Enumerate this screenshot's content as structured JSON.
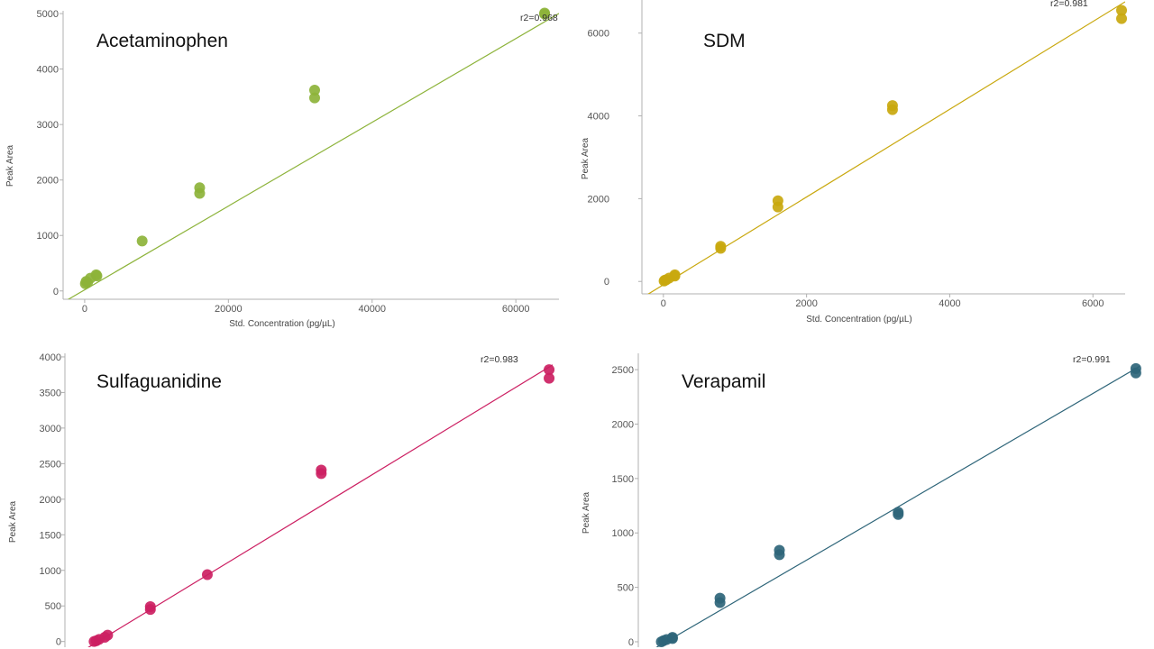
{
  "chart_data": [
    {
      "type": "scatter",
      "title": "Acetaminophen",
      "xlabel": "Std. Concentration (pg/µL)",
      "ylabel": "Peak Area",
      "xlim": [
        -3000,
        66000
      ],
      "ylim": [
        -150,
        5050
      ],
      "xticks": [
        0,
        20000,
        40000,
        60000
      ],
      "yticks": [
        0,
        1000,
        2000,
        3000,
        4000,
        5000
      ],
      "r2_label": "r2=0.968",
      "color": "#8db33a",
      "fit": {
        "slope": 0.0755,
        "intercept": 20
      },
      "points": [
        {
          "x": 100,
          "y": 130
        },
        {
          "x": 200,
          "y": 170
        },
        {
          "x": 400,
          "y": 150
        },
        {
          "x": 800,
          "y": 230
        },
        {
          "x": 1600,
          "y": 290
        },
        {
          "x": 1700,
          "y": 270
        },
        {
          "x": 8000,
          "y": 900
        },
        {
          "x": 16000,
          "y": 1760
        },
        {
          "x": 16000,
          "y": 1860
        },
        {
          "x": 32000,
          "y": 3480
        },
        {
          "x": 32000,
          "y": 3620
        },
        {
          "x": 64000,
          "y": 4990
        },
        {
          "x": 64000,
          "y": 5010
        }
      ]
    },
    {
      "type": "scatter",
      "title": "SDM",
      "xlabel": "Std. Concentration (pg/µL)",
      "ylabel": "Peak Area",
      "xlim": [
        -300,
        6450
      ],
      "ylim": [
        -300,
        6800
      ],
      "xticks": [
        0,
        2000,
        4000,
        6000
      ],
      "yticks": [
        0,
        2000,
        4000,
        6000
      ],
      "r2_label": "r2=0.981",
      "color": "#c9a80e",
      "fit": {
        "slope": 1.06,
        "intercept": -80
      },
      "points": [
        {
          "x": 10,
          "y": 10
        },
        {
          "x": 20,
          "y": 30
        },
        {
          "x": 40,
          "y": 40
        },
        {
          "x": 80,
          "y": 80
        },
        {
          "x": 160,
          "y": 160
        },
        {
          "x": 160,
          "y": 130
        },
        {
          "x": 800,
          "y": 800
        },
        {
          "x": 800,
          "y": 850
        },
        {
          "x": 1600,
          "y": 1800
        },
        {
          "x": 1600,
          "y": 1950
        },
        {
          "x": 3200,
          "y": 4150
        },
        {
          "x": 3200,
          "y": 4250
        },
        {
          "x": 6400,
          "y": 6350
        },
        {
          "x": 6400,
          "y": 6550
        }
      ]
    },
    {
      "type": "scatter",
      "title": "Sulfaguanidine",
      "xlabel": "",
      "ylabel": "Peak Area",
      "xlim": [
        -400,
        6450
      ],
      "ylim": [
        -80,
        4050
      ],
      "xticks": [],
      "yticks": [
        0,
        500,
        1000,
        1500,
        2000,
        2500,
        3000,
        3500,
        4000
      ],
      "r2_label": "r2=0.983",
      "color": "#cc1f62",
      "fit": {
        "slope": 0.609,
        "intercept": -40
      },
      "points": [
        {
          "x": 10,
          "y": 0
        },
        {
          "x": 40,
          "y": 10
        },
        {
          "x": 80,
          "y": 30
        },
        {
          "x": 160,
          "y": 60
        },
        {
          "x": 200,
          "y": 90
        },
        {
          "x": 800,
          "y": 450
        },
        {
          "x": 800,
          "y": 490
        },
        {
          "x": 1600,
          "y": 940
        },
        {
          "x": 3200,
          "y": 2360
        },
        {
          "x": 3200,
          "y": 2410
        },
        {
          "x": 6400,
          "y": 3700
        },
        {
          "x": 6400,
          "y": 3820
        }
      ]
    },
    {
      "type": "scatter",
      "title": "Verapamil",
      "xlabel": "",
      "ylabel": "Peak Area",
      "xlim": [
        -300,
        6450
      ],
      "ylim": [
        -50,
        2650
      ],
      "xticks": [],
      "yticks": [
        0,
        500,
        1000,
        1500,
        2000,
        2500
      ],
      "r2_label": "r2=0.991",
      "color": "#2e6579",
      "fit": {
        "slope": 0.397,
        "intercept": -30
      },
      "points": [
        {
          "x": 10,
          "y": 0
        },
        {
          "x": 40,
          "y": 10
        },
        {
          "x": 80,
          "y": 20
        },
        {
          "x": 160,
          "y": 30
        },
        {
          "x": 160,
          "y": 40
        },
        {
          "x": 800,
          "y": 360
        },
        {
          "x": 800,
          "y": 400
        },
        {
          "x": 1600,
          "y": 800
        },
        {
          "x": 1600,
          "y": 840
        },
        {
          "x": 3200,
          "y": 1170
        },
        {
          "x": 3200,
          "y": 1190
        },
        {
          "x": 6400,
          "y": 2470
        },
        {
          "x": 6400,
          "y": 2510
        }
      ]
    }
  ]
}
